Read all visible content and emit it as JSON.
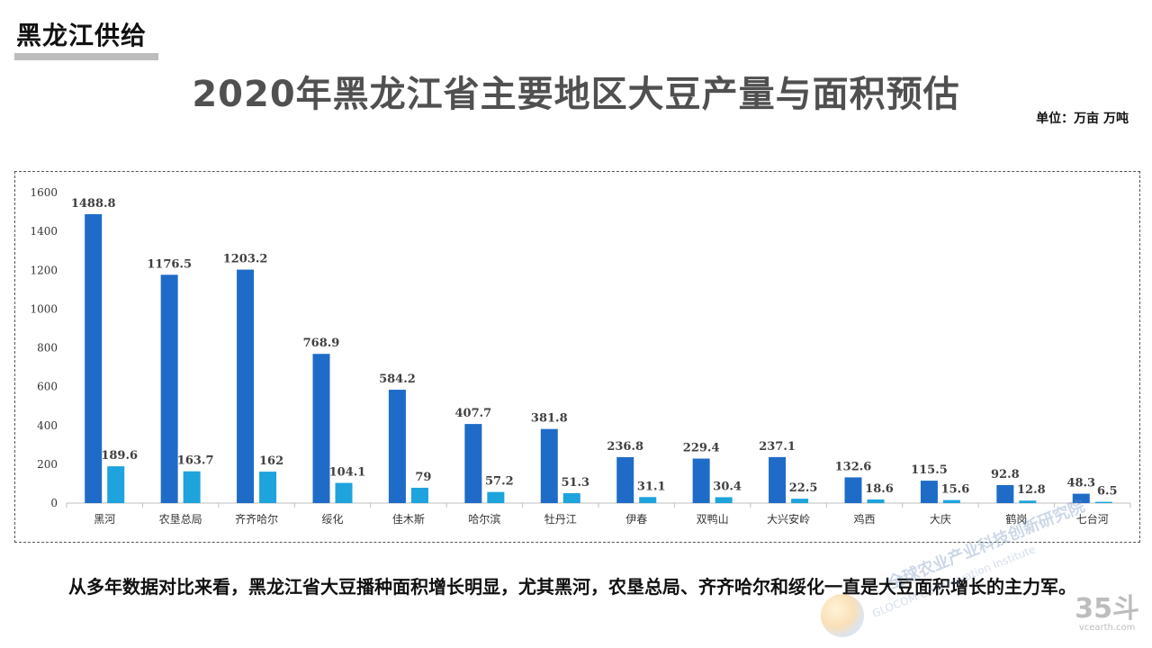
{
  "header": {
    "section_tag": "黑龙江供给",
    "title": "2020年黑龙江省主要地区大豆产量与面积预估",
    "unit": "单位：万亩 万吨"
  },
  "chart_data": {
    "type": "bar",
    "title": "2020年黑龙江省主要地区大豆产量与面积预估",
    "xlabel": "",
    "ylabel": "",
    "ylim": [
      0,
      1600
    ],
    "yticks": [
      0,
      200,
      400,
      600,
      800,
      1000,
      1200,
      1400,
      1600
    ],
    "grid": false,
    "legend": "none",
    "categories": [
      "黑河",
      "农垦总局",
      "齐齐哈尔",
      "绥化",
      "佳木斯",
      "哈尔滨",
      "牡丹江",
      "伊春",
      "双鸭山",
      "大兴安岭",
      "鸡西",
      "大庆",
      "鹤岗",
      "七台河"
    ],
    "series": [
      {
        "color": "#1f6cc8",
        "values": [
          1488.8,
          1176.5,
          1203.2,
          768.9,
          584.2,
          407.7,
          381.8,
          236.8,
          229.4,
          237.1,
          132.6,
          115.5,
          92.8,
          48.3
        ]
      },
      {
        "color": "#1ea3dd",
        "values": [
          189.6,
          163.7,
          162,
          104.1,
          79,
          57.2,
          51.3,
          31.1,
          30.4,
          22.5,
          18.6,
          15.6,
          12.8,
          6.5
        ]
      }
    ]
  },
  "commentary": "从多年数据对比来看，黑龙江省大豆播种面积增长明显，尤其黑河，农垦总局、齐齐哈尔和绥化一直是大豆面积增长的主力军。",
  "watermark": {
    "text_cn": "全球农业产业科技创新研究院",
    "text_en": "GLOCOM Co-Innovation Institute",
    "logo_icon": "globe-logo-icon"
  },
  "brand": {
    "mark": "35斗",
    "site": "vcearth.com"
  }
}
